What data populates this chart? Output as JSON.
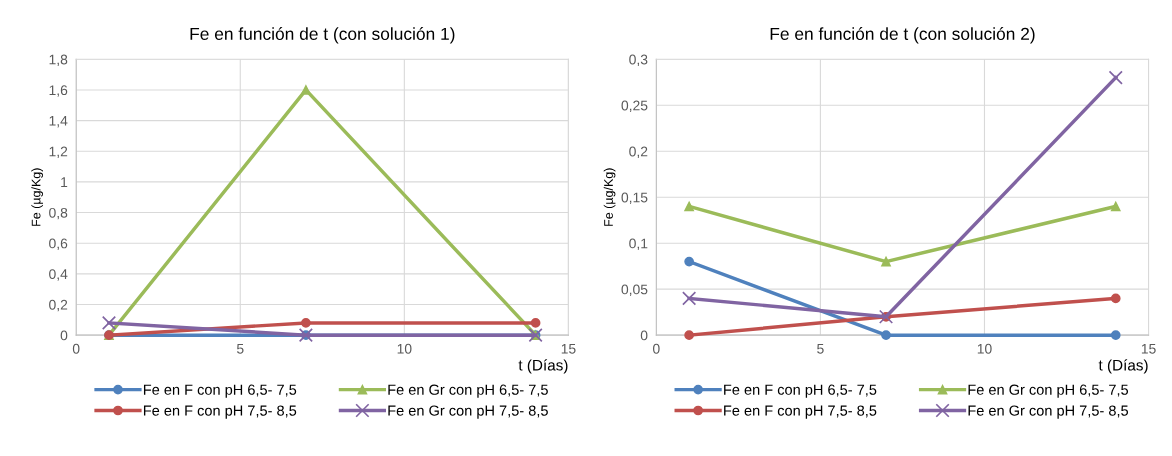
{
  "chart_data": [
    {
      "type": "line",
      "title": "Fe en función de t (con solución 1)",
      "xlabel": "t (Días)",
      "ylabel": "Fe (µg/Kg)",
      "x": [
        1,
        7,
        14
      ],
      "xlim": [
        0,
        15
      ],
      "xticks": [
        0,
        5,
        10,
        15
      ],
      "ylim": [
        0,
        1.8
      ],
      "yticks": [
        0,
        {
          "value": 0.2,
          "label": "0,2"
        },
        {
          "value": 0.4,
          "label": "0,4"
        },
        {
          "value": 0.6,
          "label": "0,6"
        },
        {
          "value": 0.8,
          "label": "0,8"
        },
        1,
        {
          "value": 1.2,
          "label": "1,2"
        },
        {
          "value": 1.4,
          "label": "1,4"
        },
        {
          "value": 1.6,
          "label": "1,6"
        },
        {
          "value": 1.8,
          "label": "1,8"
        }
      ],
      "grid": true,
      "legend": "bottom",
      "series": [
        {
          "name": "Fe en F con pH 6,5- 7,5",
          "color": "#4f81bd",
          "marker": "circle",
          "values": [
            0,
            0,
            0
          ]
        },
        {
          "name": "Fe en Gr con pH 6,5- 7,5",
          "color": "#9bbb59",
          "marker": "triangle",
          "values": [
            0,
            1.6,
            0
          ]
        },
        {
          "name": "Fe en F con pH 7,5- 8,5",
          "color": "#c0504d",
          "marker": "circle",
          "values": [
            0,
            0.08,
            0.08
          ]
        },
        {
          "name": "Fe en Gr con pH 7,5- 8,5",
          "color": "#8064a2",
          "marker": "cross",
          "values": [
            0.08,
            0,
            0
          ]
        }
      ]
    },
    {
      "type": "line",
      "title": "Fe en función de t (con solución 2)",
      "xlabel": "t (Días)",
      "ylabel": "Fe (µg/Kg)",
      "x": [
        1,
        7,
        14
      ],
      "xlim": [
        0,
        15
      ],
      "xticks": [
        0,
        5,
        10,
        15
      ],
      "ylim": [
        0,
        0.3
      ],
      "yticks": [
        0,
        {
          "value": 0.05,
          "label": "0,05"
        },
        {
          "value": 0.1,
          "label": "0,1"
        },
        {
          "value": 0.15,
          "label": "0,15"
        },
        {
          "value": 0.2,
          "label": "0,2"
        },
        {
          "value": 0.25,
          "label": "0,25"
        },
        {
          "value": 0.3,
          "label": "0,3"
        }
      ],
      "grid": true,
      "legend": "bottom",
      "series": [
        {
          "name": "Fe en F con pH 6,5- 7,5",
          "color": "#4f81bd",
          "marker": "circle",
          "values": [
            0.08,
            0,
            0
          ]
        },
        {
          "name": "Fe en Gr con pH 6,5- 7,5",
          "color": "#9bbb59",
          "marker": "triangle",
          "values": [
            0.14,
            0.08,
            0.14
          ]
        },
        {
          "name": "Fe en F con pH 7,5- 8,5",
          "color": "#c0504d",
          "marker": "circle",
          "values": [
            0,
            0.02,
            0.04
          ]
        },
        {
          "name": "Fe en Gr con pH 7,5- 8,5",
          "color": "#8064a2",
          "marker": "cross",
          "values": [
            0.04,
            0.02,
            0.28
          ]
        }
      ]
    }
  ]
}
